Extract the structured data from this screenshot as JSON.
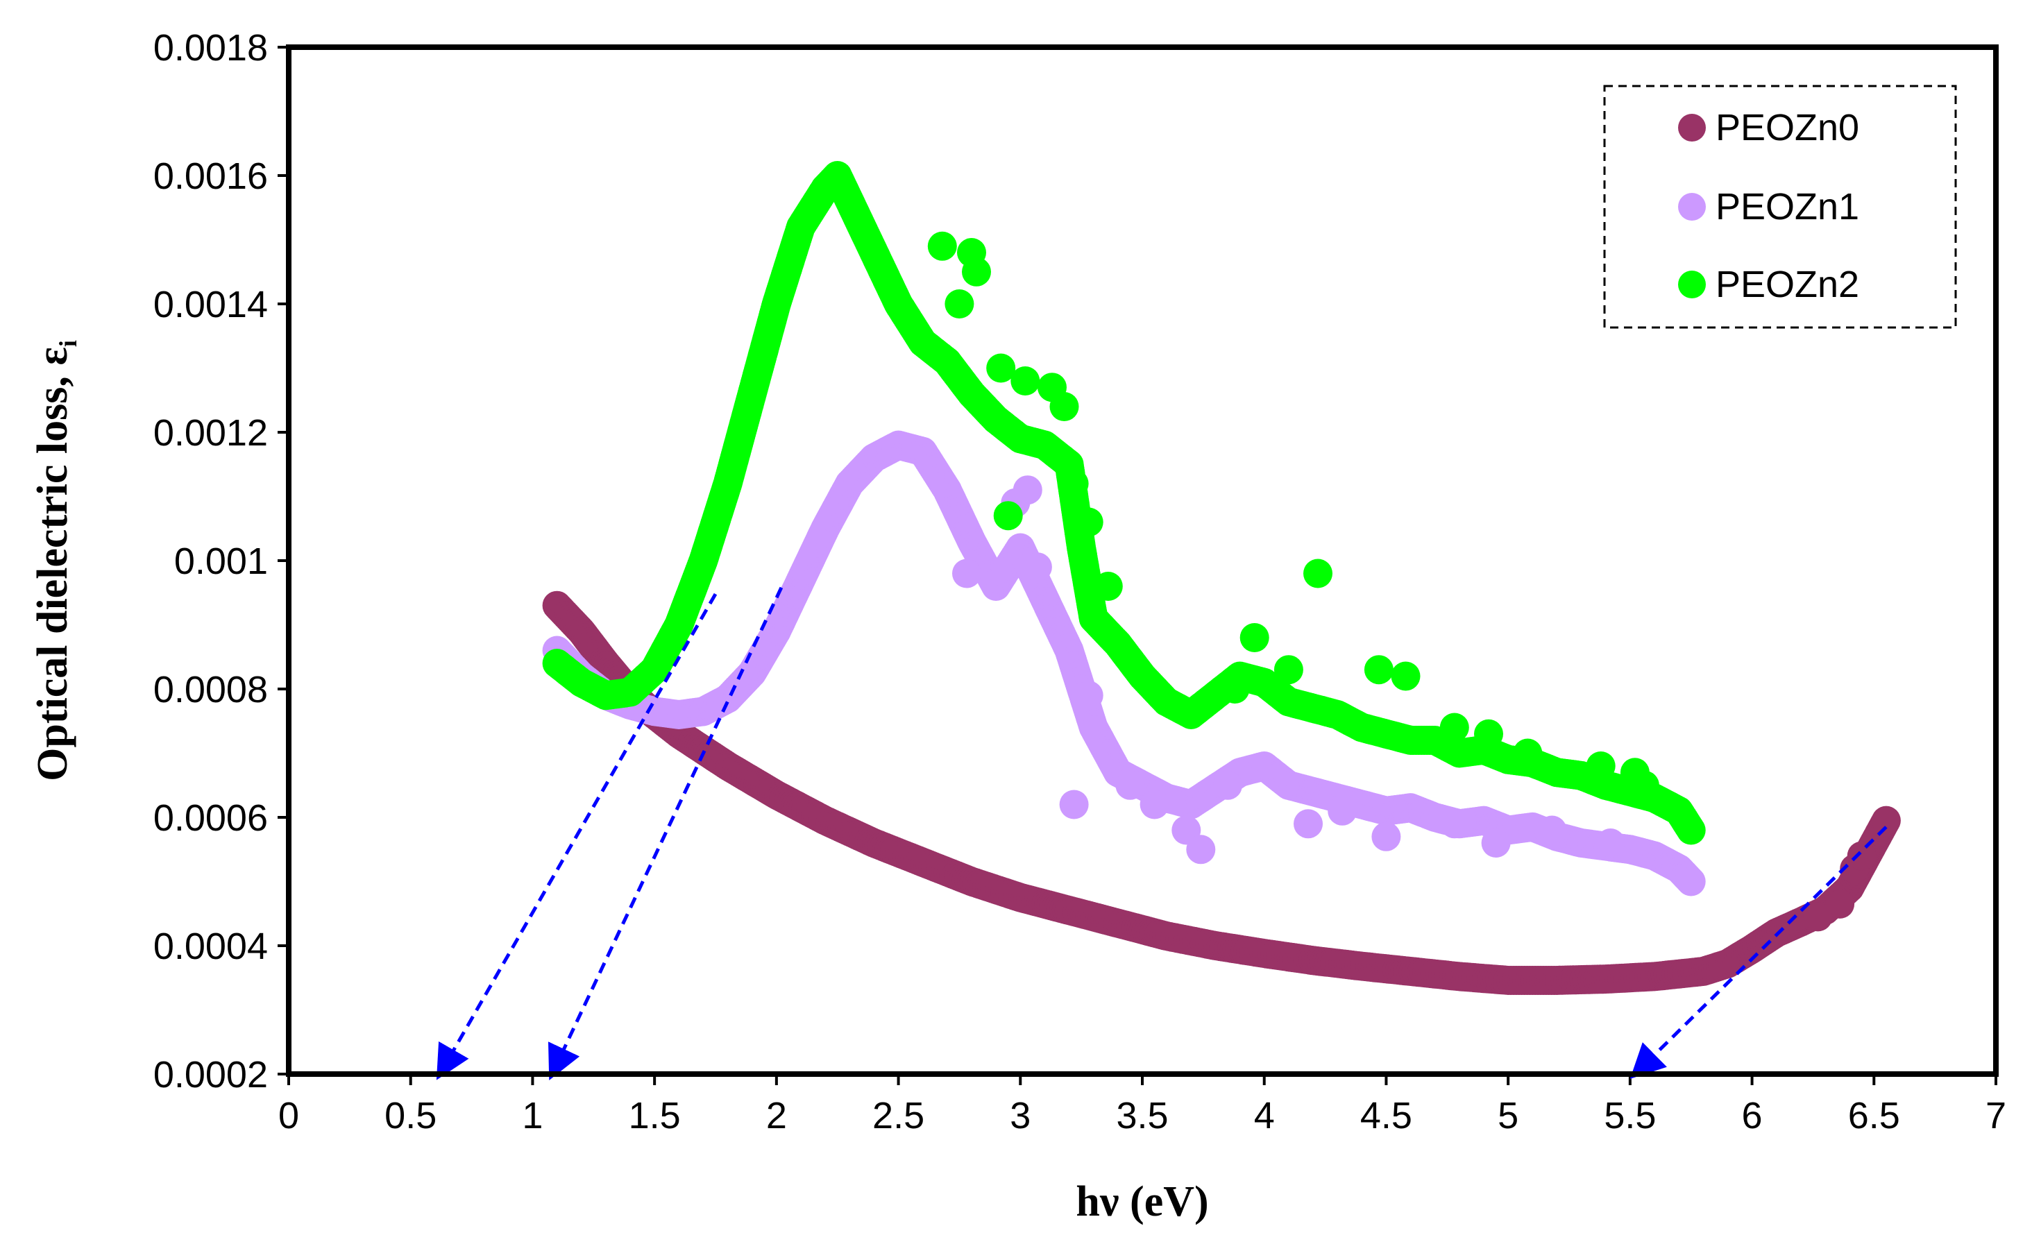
{
  "chart_data": {
    "type": "scatter",
    "xlabel": "hν (eV)",
    "ylabel": "Optical dielectric loss,  ε",
    "ylabel_subscript": "i",
    "xlim": [
      0,
      7
    ],
    "ylim": [
      0.0002,
      0.0018
    ],
    "x_ticks": [
      "0",
      "0.5",
      "1",
      "1.5",
      "2",
      "2.5",
      "3",
      "3.5",
      "4",
      "4.5",
      "5",
      "5.5",
      "6",
      "6.5",
      "7"
    ],
    "y_ticks": [
      "0.0002",
      "0.0004",
      "0.0006",
      "0.0008",
      "0.001",
      "0.0012",
      "0.0014",
      "0.0016",
      "0.0018"
    ],
    "legend": {
      "position": "top-right",
      "entries": [
        {
          "name": "PEOZn0",
          "color": "#993366"
        },
        {
          "name": "PEOZn1",
          "color": "#CC99FF"
        },
        {
          "name": "PEOZn2",
          "color": "#00FF00"
        }
      ]
    },
    "series": [
      {
        "name": "PEOZn0",
        "color": "#993366",
        "x": [
          1.1,
          1.2,
          1.3,
          1.4,
          1.5,
          1.6,
          1.7,
          1.8,
          2.0,
          2.2,
          2.4,
          2.6,
          2.8,
          3.0,
          3.2,
          3.4,
          3.6,
          3.8,
          4.0,
          4.2,
          4.4,
          4.6,
          4.8,
          5.0,
          5.2,
          5.4,
          5.6,
          5.8,
          5.9,
          6.0,
          6.1,
          6.2,
          6.3,
          6.4,
          6.5,
          6.55
        ],
        "y": [
          0.00093,
          0.00089,
          0.00084,
          0.000795,
          0.00076,
          0.00073,
          0.000705,
          0.00068,
          0.000635,
          0.000595,
          0.00056,
          0.00053,
          0.0005,
          0.000475,
          0.000455,
          0.000435,
          0.000415,
          0.0004,
          0.000388,
          0.000377,
          0.000368,
          0.00036,
          0.000352,
          0.000346,
          0.000346,
          0.000348,
          0.000352,
          0.00036,
          0.000372,
          0.000395,
          0.00042,
          0.000437,
          0.000455,
          0.00049,
          0.00056,
          0.000595
        ]
      },
      {
        "name": "PEOZn1",
        "color": "#CC99FF",
        "x": [
          1.1,
          1.2,
          1.3,
          1.4,
          1.5,
          1.6,
          1.7,
          1.8,
          1.9,
          2.0,
          2.1,
          2.2,
          2.3,
          2.4,
          2.5,
          2.6,
          2.7,
          2.8,
          2.9,
          3.0,
          3.1,
          3.2,
          3.3,
          3.4,
          3.5,
          3.6,
          3.7,
          3.8,
          3.9,
          4.0,
          4.1,
          4.2,
          4.3,
          4.4,
          4.5,
          4.6,
          4.7,
          4.8,
          4.9,
          5.0,
          5.1,
          5.2,
          5.3,
          5.4,
          5.5,
          5.6,
          5.7,
          5.75
        ],
        "y": [
          0.00086,
          0.00082,
          0.00079,
          0.000775,
          0.000765,
          0.00076,
          0.000765,
          0.000785,
          0.000825,
          0.00089,
          0.00097,
          0.00105,
          0.00112,
          0.00116,
          0.00118,
          0.00117,
          0.00111,
          0.00103,
          0.00096,
          0.00102,
          0.00094,
          0.00086,
          0.00074,
          0.00067,
          0.00065,
          0.00063,
          0.00062,
          0.000645,
          0.00067,
          0.00068,
          0.00065,
          0.00064,
          0.00063,
          0.00062,
          0.00061,
          0.000615,
          0.0006,
          0.00059,
          0.000595,
          0.00058,
          0.000585,
          0.00057,
          0.00056,
          0.000555,
          0.00055,
          0.00054,
          0.00052,
          0.0005
        ]
      },
      {
        "name": "PEOZn2",
        "color": "#00FF00",
        "x": [
          1.1,
          1.2,
          1.3,
          1.4,
          1.5,
          1.6,
          1.7,
          1.8,
          1.9,
          2.0,
          2.1,
          2.2,
          2.25,
          2.3,
          2.4,
          2.5,
          2.6,
          2.7,
          2.8,
          2.9,
          3.0,
          3.1,
          3.2,
          3.25,
          3.3,
          3.4,
          3.5,
          3.6,
          3.7,
          3.8,
          3.9,
          4.0,
          4.1,
          4.2,
          4.3,
          4.4,
          4.5,
          4.6,
          4.7,
          4.8,
          4.9,
          5.0,
          5.1,
          5.2,
          5.3,
          5.4,
          5.5,
          5.6,
          5.7,
          5.75
        ],
        "y": [
          0.00084,
          0.00081,
          0.00079,
          0.000795,
          0.00083,
          0.0009,
          0.001,
          0.00112,
          0.00126,
          0.0014,
          0.00152,
          0.00158,
          0.0016,
          0.00156,
          0.00148,
          0.0014,
          0.00134,
          0.00131,
          0.00126,
          0.00122,
          0.00119,
          0.00118,
          0.00115,
          0.00102,
          0.00091,
          0.00087,
          0.00082,
          0.00078,
          0.00076,
          0.00079,
          0.00082,
          0.00081,
          0.00078,
          0.00077,
          0.00076,
          0.00074,
          0.00073,
          0.00072,
          0.00072,
          0.0007,
          0.000705,
          0.00069,
          0.000685,
          0.00067,
          0.000665,
          0.00065,
          0.00064,
          0.00063,
          0.00061,
          0.00058
        ]
      },
      {
        "name": "PEOZn0",
        "color": "#993366",
        "points": [
          [
            6.42,
            0.00052
          ],
          [
            6.45,
            0.00054
          ],
          [
            6.36,
            0.000465
          ],
          [
            6.27,
            0.000445
          ]
        ]
      },
      {
        "name": "PEOZn1",
        "color": "#CC99FF",
        "points": [
          [
            2.78,
            0.00098
          ],
          [
            2.98,
            0.00109
          ],
          [
            3.03,
            0.00111
          ],
          [
            3.07,
            0.00099
          ],
          [
            3.22,
            0.00062
          ],
          [
            3.28,
            0.00079
          ],
          [
            3.45,
            0.00065
          ],
          [
            3.55,
            0.00062
          ],
          [
            3.68,
            0.00058
          ],
          [
            3.74,
            0.00055
          ],
          [
            3.85,
            0.00065
          ],
          [
            4.18,
            0.00059
          ],
          [
            4.32,
            0.00061
          ],
          [
            4.5,
            0.00057
          ],
          [
            4.78,
            0.00059
          ],
          [
            4.95,
            0.00056
          ],
          [
            5.18,
            0.00058
          ],
          [
            5.42,
            0.00056
          ]
        ]
      },
      {
        "name": "PEOZn2",
        "color": "#00FF00",
        "points": [
          [
            2.68,
            0.00149
          ],
          [
            2.8,
            0.00148
          ],
          [
            2.82,
            0.00145
          ],
          [
            2.75,
            0.0014
          ],
          [
            2.92,
            0.0013
          ],
          [
            3.02,
            0.00128
          ],
          [
            3.13,
            0.00127
          ],
          [
            3.18,
            0.00124
          ],
          [
            3.22,
            0.00112
          ],
          [
            3.28,
            0.00106
          ],
          [
            3.36,
            0.00096
          ],
          [
            2.95,
            0.00107
          ],
          [
            4.22,
            0.00098
          ],
          [
            3.96,
            0.00088
          ],
          [
            3.88,
            0.0008
          ],
          [
            4.1,
            0.00083
          ],
          [
            4.47,
            0.00083
          ],
          [
            4.58,
            0.00082
          ],
          [
            4.78,
            0.00074
          ],
          [
            4.92,
            0.00073
          ],
          [
            5.08,
            0.0007
          ],
          [
            5.38,
            0.00068
          ],
          [
            5.52,
            0.00067
          ],
          [
            5.56,
            0.00065
          ]
        ]
      }
    ],
    "annotations": [
      {
        "type": "dashed-arrow",
        "color": "#0000FF",
        "from": [
          1.75,
          0.000948
        ],
        "to": [
          0.62,
          0.0002
        ]
      },
      {
        "type": "dashed-arrow",
        "color": "#0000FF",
        "from": [
          2.02,
          0.000958
        ],
        "to": [
          1.08,
          0.0002
        ]
      },
      {
        "type": "dashed-arrow",
        "color": "#0000FF",
        "from": [
          6.55,
          0.000585
        ],
        "to": [
          5.52,
          0.0002
        ]
      }
    ]
  }
}
